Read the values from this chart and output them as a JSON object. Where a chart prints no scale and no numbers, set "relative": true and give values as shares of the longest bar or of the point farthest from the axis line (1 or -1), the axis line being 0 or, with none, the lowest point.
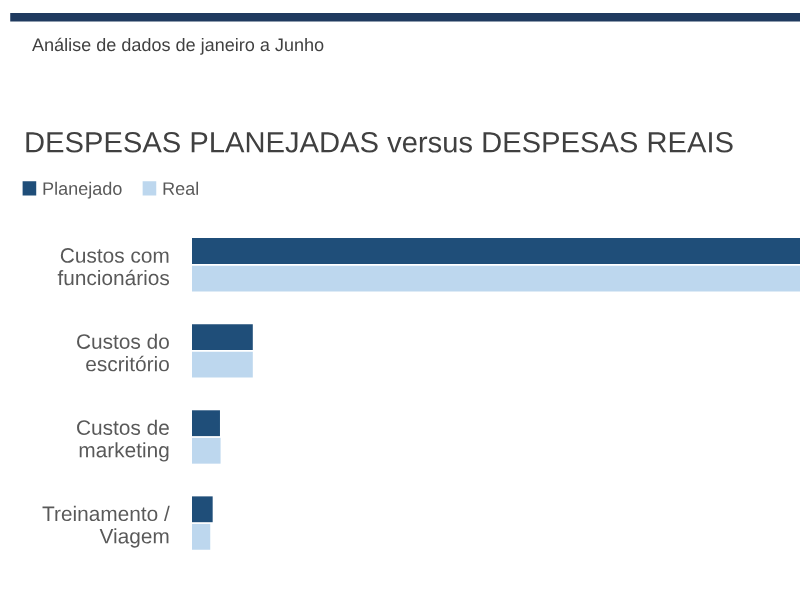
{
  "chart_data": {
    "type": "bar",
    "orientation": "horizontal",
    "relative": true,
    "subtitle": "Análise de dados de janeiro a Junho",
    "title": "DESPESAS PLANEJADAS versus DESPESAS REAIS",
    "categories": [
      "Custos com\nfuncionários",
      "Custos do\nescritório",
      "Custos de\nmarketing",
      "Treinamento /\nViagem"
    ],
    "series": [
      {
        "name": "Planejado",
        "color": "#1f4e79",
        "values": [
          1,
          0.1,
          0.046,
          0.034
        ]
      },
      {
        "name": "Real",
        "color": "#bdd7ee",
        "values": [
          1,
          0.1,
          0.047,
          0.03
        ]
      }
    ],
    "legend": "top left",
    "grid": false
  }
}
